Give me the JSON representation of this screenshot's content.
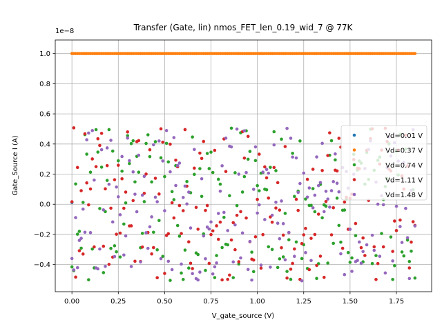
{
  "chart_data": {
    "type": "scatter",
    "title": "Transfer (Gate, lin) nmos_FET_len_0.19_wid_7 @ 77K",
    "xlabel": "V_gate_source (V)",
    "ylabel": "Gate_Source I (A)",
    "y_offset_label": "1e−8",
    "xlim": [
      -0.09,
      1.94
    ],
    "ylim": [
      -5.8,
      10.9
    ],
    "x_ticks": [
      0.0,
      0.25,
      0.5,
      0.75,
      1.0,
      1.25,
      1.5,
      1.75
    ],
    "x_tick_labels": [
      "0.00",
      "0.25",
      "0.50",
      "0.75",
      "1.00",
      "1.25",
      "1.50",
      "1.75"
    ],
    "y_ticks": [
      -4,
      -2,
      0,
      2,
      4,
      6,
      8,
      10
    ],
    "y_tick_labels": [
      "−0.4",
      "−0.2",
      "0.0",
      "0.2",
      "0.4",
      "0.6",
      "0.8",
      "1.0"
    ],
    "grid": true,
    "legend_position": "right",
    "x_range": [
      0.0,
      1.85
    ],
    "x_step": 0.01,
    "series": [
      {
        "name": "Vd=0.01 V",
        "color": "#1f77b4",
        "pattern": "noise",
        "y_range": [
          -5.1,
          5.1
        ],
        "seed": 11
      },
      {
        "name": "Vd=0.37 V",
        "color": "#ff7f0e",
        "pattern": "constant",
        "value": 10.0
      },
      {
        "name": "Vd=0.74 V",
        "color": "#2ca02c",
        "pattern": "noise",
        "y_range": [
          -5.1,
          5.1
        ],
        "seed": 23
      },
      {
        "name": "Vd=1.11 V",
        "color": "#d62728",
        "pattern": "noise",
        "y_range": [
          -5.1,
          5.1
        ],
        "seed": 37
      },
      {
        "name": "Vd=1.48 V",
        "color": "#9467bd",
        "pattern": "noise",
        "y_range": [
          -5.1,
          5.1
        ],
        "seed": 51
      }
    ]
  }
}
